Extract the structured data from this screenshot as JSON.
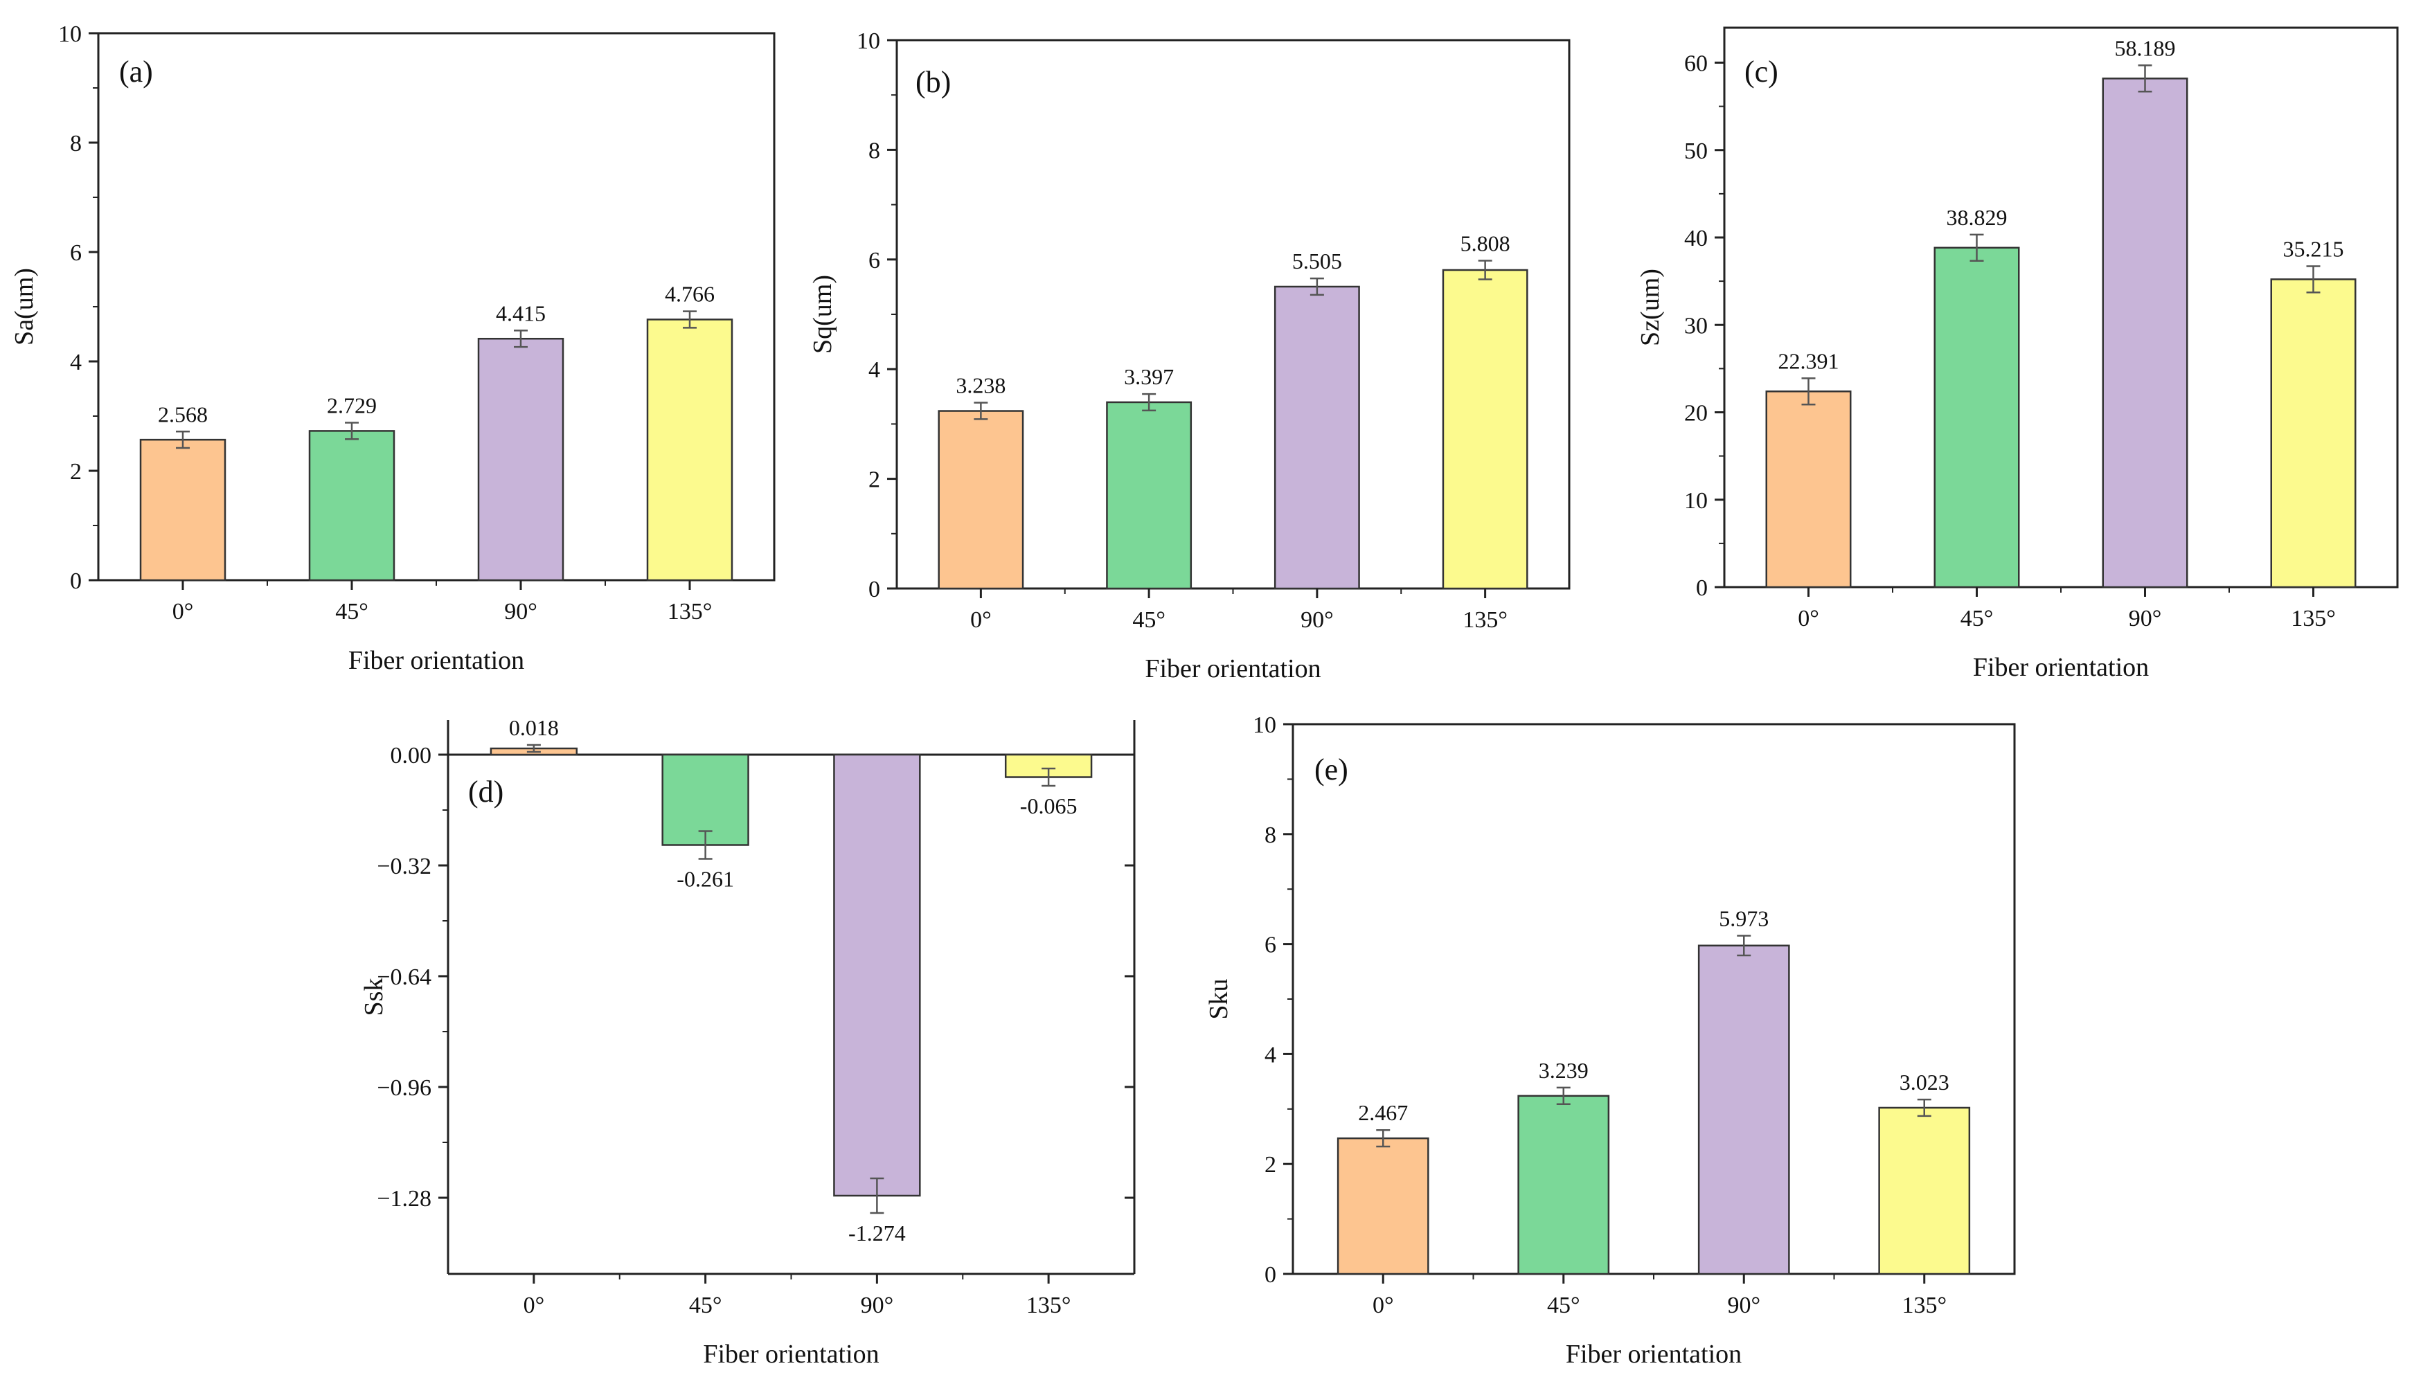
{
  "figure": {
    "colors": {
      "0°": "#FDC590",
      "45°": "#7BD898",
      "90°": "#C8B4D9",
      "135°": "#FCFA8E",
      "edge": "#333333",
      "error_bar": "#555555"
    }
  },
  "chart_data": [
    {
      "id": "a",
      "panel_label": "(a)",
      "type": "bar",
      "categories": [
        "0°",
        "45°",
        "90°",
        "135°"
      ],
      "values": [
        2.568,
        2.729,
        4.415,
        4.766
      ],
      "value_labels": [
        "2.568",
        "2.729",
        "4.415",
        "4.766"
      ],
      "errors": [
        0.15,
        0.15,
        0.15,
        0.15
      ],
      "xlabel": "Fiber orientation",
      "ylabel": "Sa(um)",
      "ylim": [
        0,
        10
      ],
      "yticks": [
        0,
        2,
        4,
        6,
        8,
        10
      ],
      "ytick_labels": [
        "0",
        "2",
        "4",
        "6",
        "8",
        "10"
      ],
      "box": true
    },
    {
      "id": "b",
      "panel_label": "(b)",
      "type": "bar",
      "categories": [
        "0°",
        "45°",
        "90°",
        "135°"
      ],
      "values": [
        3.238,
        3.397,
        5.505,
        5.808
      ],
      "value_labels": [
        "3.238",
        "3.397",
        "5.505",
        "5.808"
      ],
      "errors": [
        0.15,
        0.15,
        0.15,
        0.17
      ],
      "xlabel": "Fiber orientation",
      "ylabel": "Sq(um)",
      "ylim": [
        0,
        10
      ],
      "yticks": [
        0,
        2,
        4,
        6,
        8,
        10
      ],
      "ytick_labels": [
        "0",
        "2",
        "4",
        "6",
        "8",
        "10"
      ],
      "box": true
    },
    {
      "id": "c",
      "panel_label": "(c)",
      "type": "bar",
      "categories": [
        "0°",
        "45°",
        "90°",
        "135°"
      ],
      "values": [
        22.391,
        38.829,
        58.189,
        35.215
      ],
      "value_labels": [
        "22.391",
        "38.829",
        "58.189",
        "35.215"
      ],
      "errors": [
        1.5,
        1.5,
        1.5,
        1.5
      ],
      "xlabel": "Fiber orientation",
      "ylabel": "Sz(um)",
      "ylim": [
        0,
        64
      ],
      "yticks": [
        0,
        10,
        20,
        30,
        40,
        50,
        60
      ],
      "ytick_labels": [
        "0",
        "10",
        "20",
        "30",
        "40",
        "50",
        "60"
      ],
      "box": true
    },
    {
      "id": "d",
      "panel_label": "(d)",
      "type": "bar",
      "categories": [
        "0°",
        "45°",
        "90°",
        "135°"
      ],
      "values": [
        0.018,
        -0.261,
        -1.274,
        -0.065
      ],
      "value_labels": [
        "0.018",
        "-0.261",
        "-1.274",
        "-0.065"
      ],
      "errors": [
        0.01,
        0.04,
        0.05,
        0.025
      ],
      "xlabel": "Fiber orientation",
      "ylabel": "Ssk",
      "ylim": [
        -1.5,
        0.1
      ],
      "yticks": [
        0.0,
        -0.32,
        -0.64,
        -0.96,
        -1.28
      ],
      "ytick_labels": [
        "0.00",
        "−0.32",
        "−0.64",
        "−0.96",
        "−1.28"
      ],
      "box": false
    },
    {
      "id": "e",
      "panel_label": "(e)",
      "type": "bar",
      "categories": [
        "0°",
        "45°",
        "90°",
        "135°"
      ],
      "values": [
        2.467,
        3.239,
        5.973,
        3.023
      ],
      "value_labels": [
        "2.467",
        "3.239",
        "5.973",
        "3.023"
      ],
      "errors": [
        0.15,
        0.15,
        0.18,
        0.15
      ],
      "xlabel": "Fiber orientation",
      "ylabel": "Sku",
      "ylim": [
        0,
        10
      ],
      "yticks": [
        0,
        2,
        4,
        6,
        8,
        10
      ],
      "ytick_labels": [
        "0",
        "2",
        "4",
        "6",
        "8",
        "10"
      ],
      "box": true
    }
  ]
}
